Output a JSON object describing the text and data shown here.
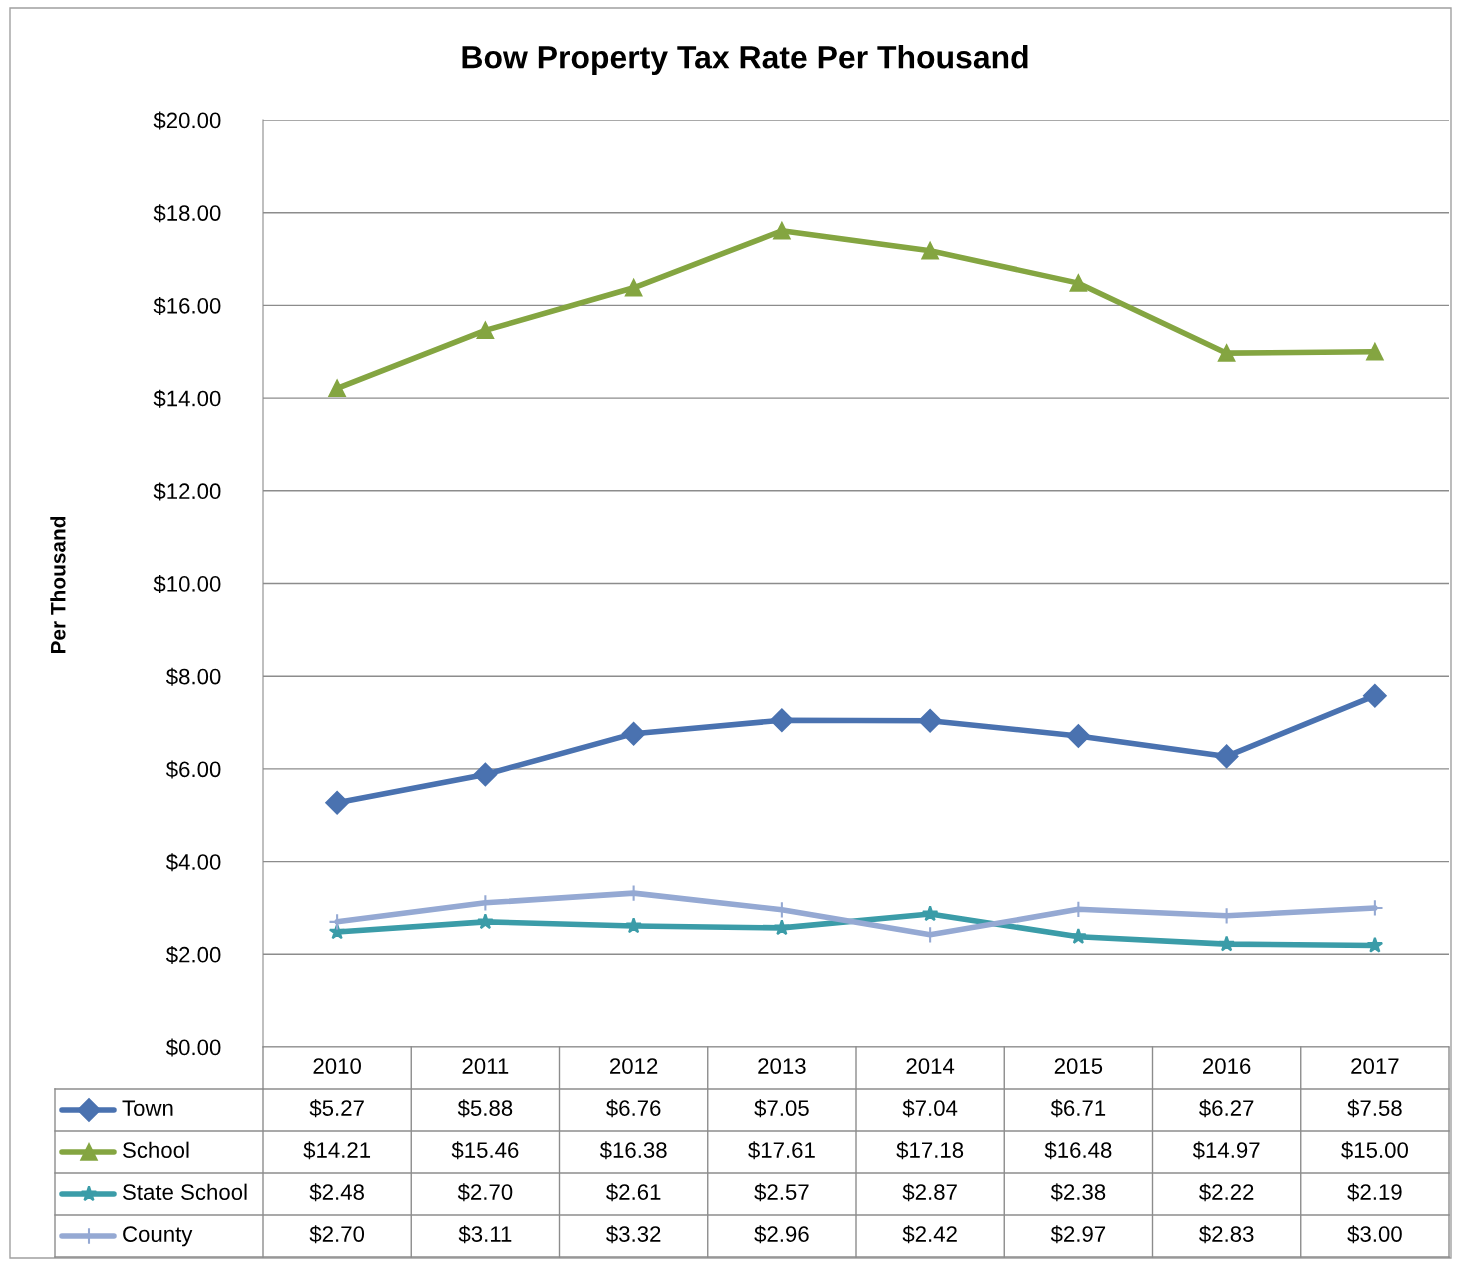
{
  "chart_data": {
    "type": "line",
    "title": "Bow Property Tax Rate Per Thousand",
    "ylabel": "Per Thousand",
    "categories": [
      "2010",
      "2011",
      "2012",
      "2013",
      "2014",
      "2015",
      "2016",
      "2017"
    ],
    "series": [
      {
        "name": "Town",
        "color": "#4a72b0",
        "marker": "diamond",
        "values": [
          5.27,
          5.88,
          6.76,
          7.05,
          7.04,
          6.71,
          6.27,
          7.58
        ],
        "value_labels": [
          "$5.27",
          "$5.88",
          "$6.76",
          "$7.05",
          "$7.04",
          "$6.71",
          "$6.27",
          "$7.58"
        ]
      },
      {
        "name": "School",
        "color": "#84a541",
        "marker": "triangle",
        "values": [
          14.21,
          15.46,
          16.38,
          17.61,
          17.18,
          16.48,
          14.97,
          15.0
        ],
        "value_labels": [
          "$14.21",
          "$15.46",
          "$16.38",
          "$17.61",
          "$17.18",
          "$16.48",
          "$14.97",
          "$15.00"
        ]
      },
      {
        "name": "State School",
        "color": "#3b9ca8",
        "marker": "star",
        "values": [
          2.48,
          2.7,
          2.61,
          2.57,
          2.87,
          2.38,
          2.22,
          2.19
        ],
        "value_labels": [
          "$2.48",
          "$2.70",
          "$2.61",
          "$2.57",
          "$2.87",
          "$2.38",
          "$2.22",
          "$2.19"
        ]
      },
      {
        "name": "County",
        "color": "#95a9d3",
        "marker": "cross",
        "values": [
          2.7,
          3.11,
          3.32,
          2.96,
          2.42,
          2.97,
          2.83,
          3.0
        ],
        "value_labels": [
          "$2.70",
          "$3.11",
          "$3.32",
          "$2.96",
          "$2.42",
          "$2.97",
          "$2.83",
          "$3.00"
        ]
      }
    ],
    "ylim": [
      0,
      20
    ],
    "yticks": [
      {
        "value": 0,
        "label": "$0.00"
      },
      {
        "value": 2,
        "label": "$2.00"
      },
      {
        "value": 4,
        "label": "$4.00"
      },
      {
        "value": 6,
        "label": "$6.00"
      },
      {
        "value": 8,
        "label": "$8.00"
      },
      {
        "value": 10,
        "label": "$10.00"
      },
      {
        "value": 12,
        "label": "$12.00"
      },
      {
        "value": 14,
        "label": "$14.00"
      },
      {
        "value": 16,
        "label": "$16.00"
      },
      {
        "value": 18,
        "label": "$18.00"
      },
      {
        "value": 20,
        "label": "$20.00"
      }
    ],
    "grid": "y",
    "legend": "bottom left",
    "line_style": "solid"
  }
}
